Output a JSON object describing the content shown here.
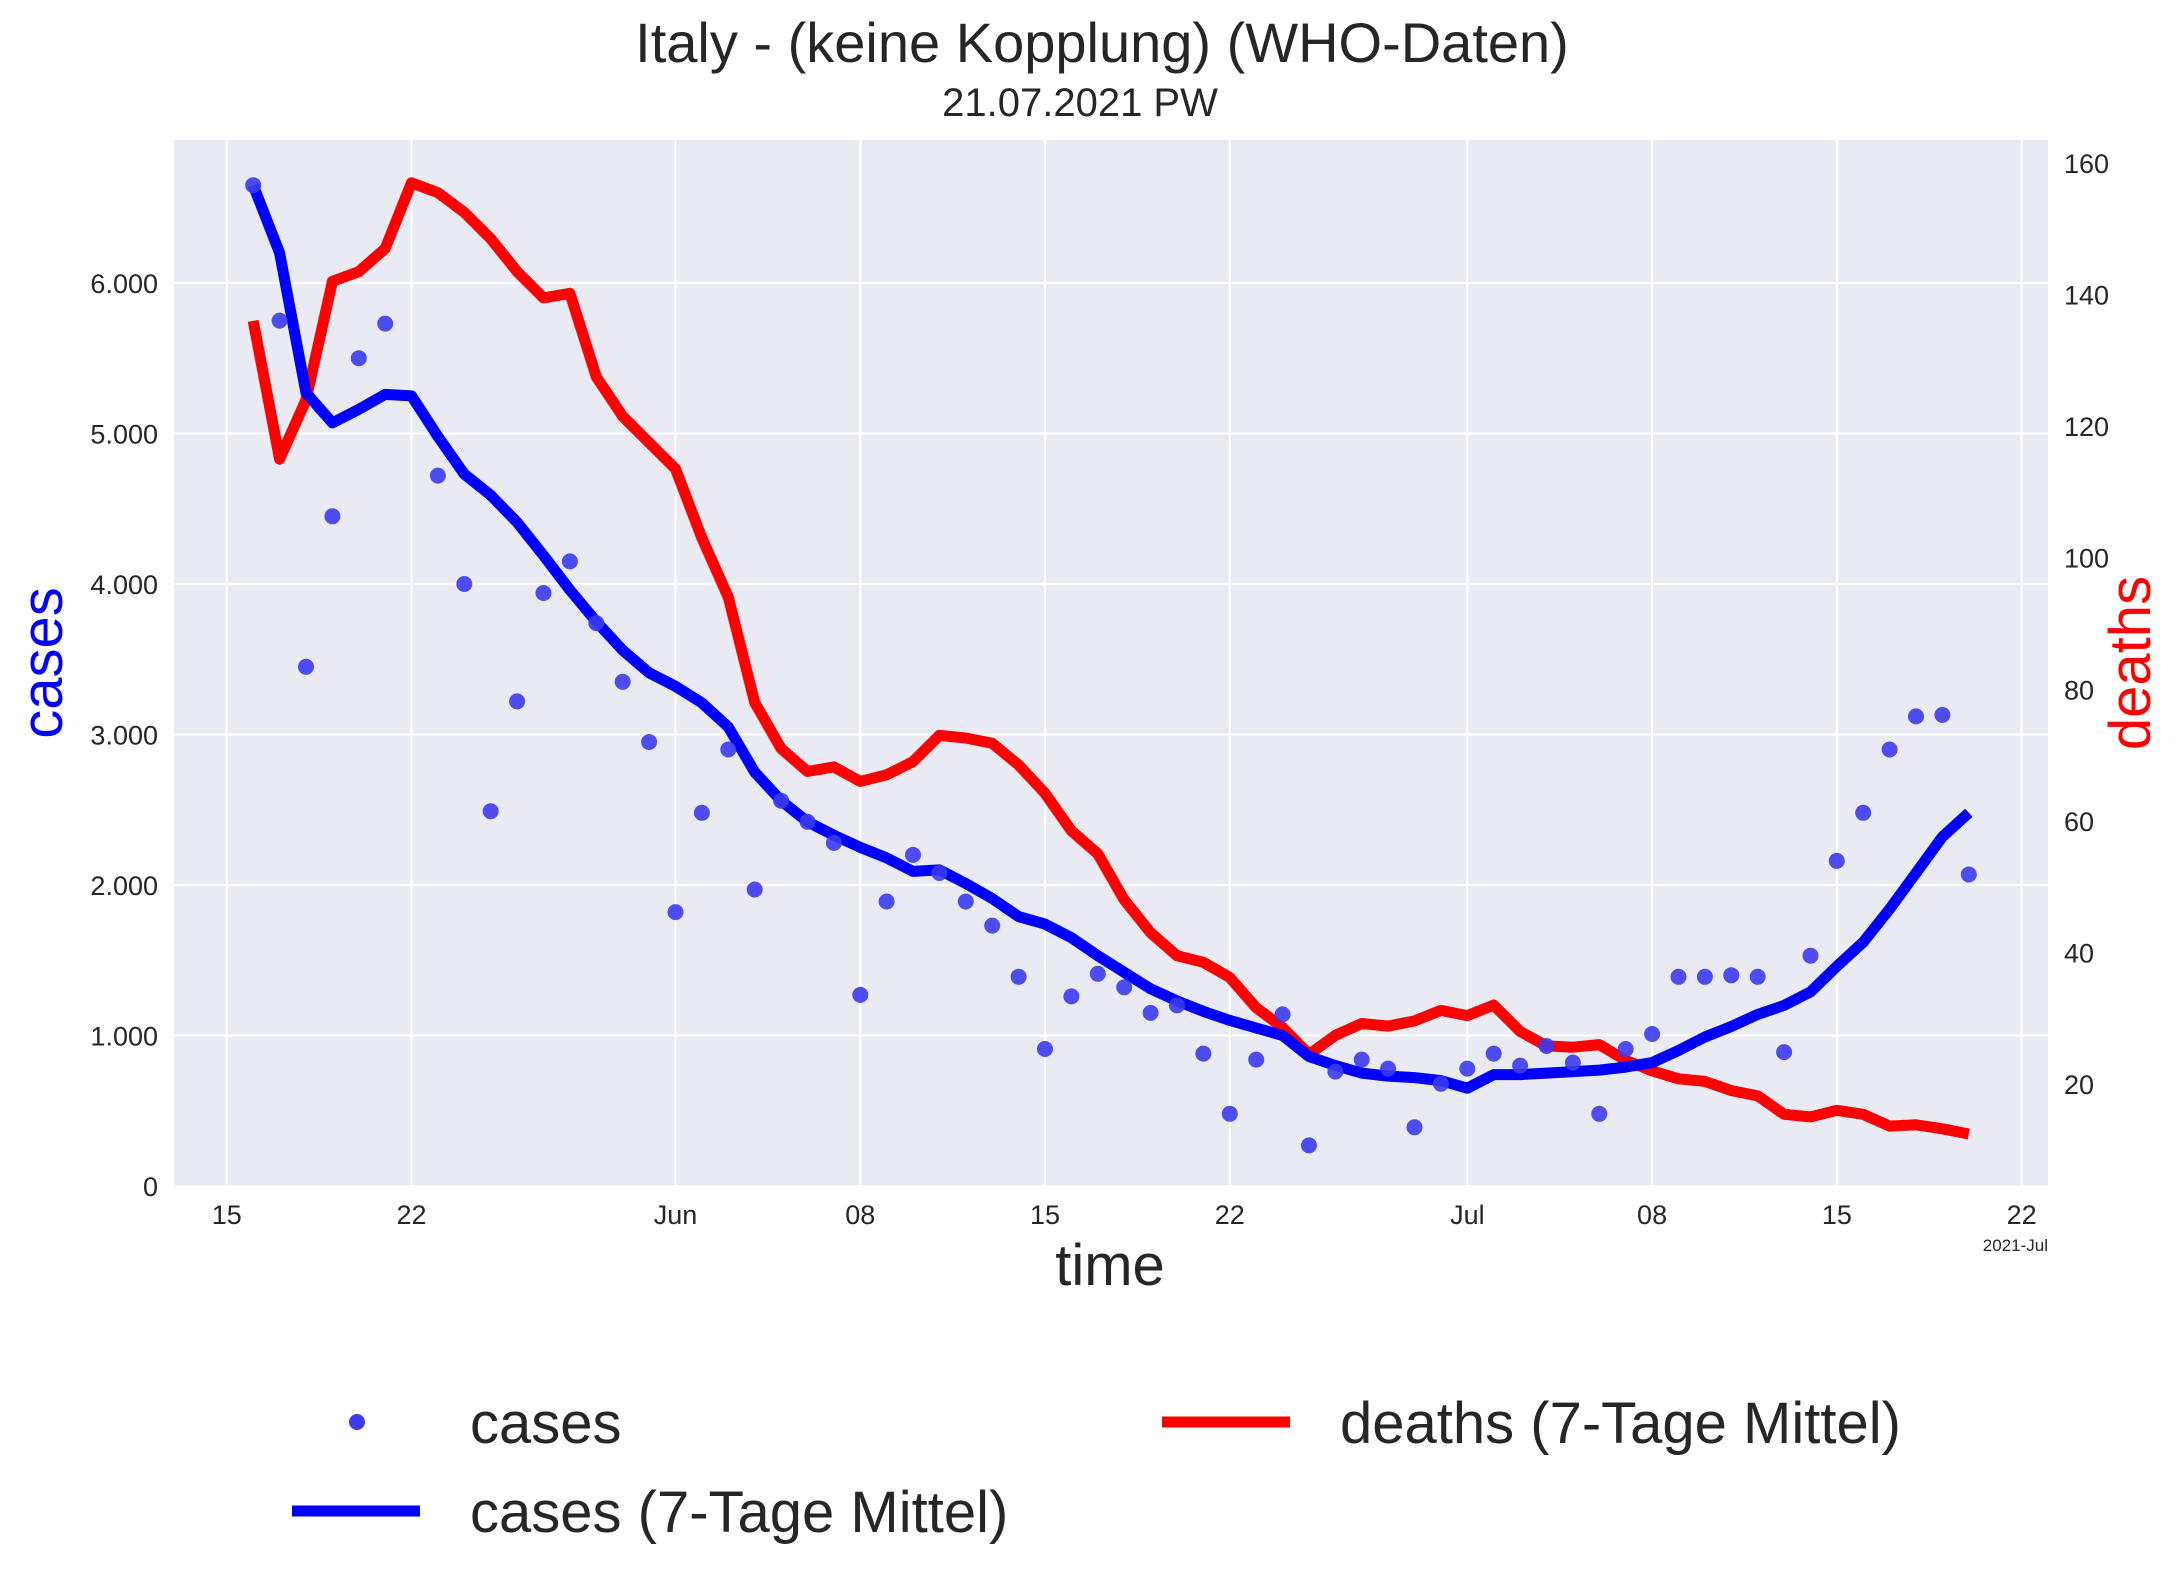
{
  "chart_data": {
    "type": "line",
    "title": "Italy - (keine Kopplung)  (WHO-Daten)",
    "subtitle": "21.07.2021 PW",
    "xlabel": "time",
    "ylabel_left": "cases",
    "ylabel_right": "deaths",
    "x_tick_labels": [
      {
        "date": "2021-05-15",
        "label": "15"
      },
      {
        "date": "2021-05-22",
        "label": "22"
      },
      {
        "date": "2021-06-01",
        "label": "Jun"
      },
      {
        "date": "2021-06-08",
        "label": "08"
      },
      {
        "date": "2021-06-15",
        "label": "15"
      },
      {
        "date": "2021-06-22",
        "label": "22"
      },
      {
        "date": "2021-07-01",
        "label": "Jul"
      },
      {
        "date": "2021-07-08",
        "label": "08"
      },
      {
        "date": "2021-07-15",
        "label": "15"
      },
      {
        "date": "2021-07-22",
        "label": "22"
      }
    ],
    "x_offset_label": "2021-Jul",
    "xlim": [
      "2021-05-13",
      "2021-07-23"
    ],
    "ylim_left": [
      0,
      6950
    ],
    "yticks_left": [
      {
        "value": 0,
        "label": "0"
      },
      {
        "value": 1000,
        "label": "1.000"
      },
      {
        "value": 2000,
        "label": "2.000"
      },
      {
        "value": 3000,
        "label": "3.000"
      },
      {
        "value": 4000,
        "label": "4.000"
      },
      {
        "value": 5000,
        "label": "5.000"
      },
      {
        "value": 6000,
        "label": "6.000"
      }
    ],
    "ylim_right": [
      4.5,
      163.5
    ],
    "yticks_right": [
      {
        "value": 20,
        "label": "20"
      },
      {
        "value": 40,
        "label": "40"
      },
      {
        "value": 60,
        "label": "60"
      },
      {
        "value": 80,
        "label": "80"
      },
      {
        "value": 100,
        "label": "100"
      },
      {
        "value": 120,
        "label": "120"
      },
      {
        "value": 140,
        "label": "140"
      },
      {
        "value": 160,
        "label": "160"
      }
    ],
    "grid": true,
    "legend_position": "bottom",
    "colors": {
      "cases_points": "#3b3bf0",
      "cases_line": "#0000ff",
      "deaths_line": "#ff0000",
      "background": "#eaeaf2",
      "grid": "#ffffff",
      "text": "#262626"
    },
    "dates": [
      "2021-05-16",
      "2021-05-17",
      "2021-05-18",
      "2021-05-19",
      "2021-05-20",
      "2021-05-21",
      "2021-05-22",
      "2021-05-23",
      "2021-05-24",
      "2021-05-25",
      "2021-05-26",
      "2021-05-27",
      "2021-05-28",
      "2021-05-29",
      "2021-05-30",
      "2021-05-31",
      "2021-06-01",
      "2021-06-02",
      "2021-06-03",
      "2021-06-04",
      "2021-06-05",
      "2021-06-06",
      "2021-06-07",
      "2021-06-08",
      "2021-06-09",
      "2021-06-10",
      "2021-06-11",
      "2021-06-12",
      "2021-06-13",
      "2021-06-14",
      "2021-06-15",
      "2021-06-16",
      "2021-06-17",
      "2021-06-18",
      "2021-06-19",
      "2021-06-20",
      "2021-06-21",
      "2021-06-22",
      "2021-06-23",
      "2021-06-24",
      "2021-06-25",
      "2021-06-26",
      "2021-06-27",
      "2021-06-28",
      "2021-06-29",
      "2021-06-30",
      "2021-07-01",
      "2021-07-02",
      "2021-07-03",
      "2021-07-04",
      "2021-07-05",
      "2021-07-06",
      "2021-07-07",
      "2021-07-08",
      "2021-07-09",
      "2021-07-10",
      "2021-07-11",
      "2021-07-12",
      "2021-07-13",
      "2021-07-14",
      "2021-07-15",
      "2021-07-16",
      "2021-07-17",
      "2021-07-18",
      "2021-07-19",
      "2021-07-20"
    ],
    "series": [
      {
        "name": "cases",
        "kind": "scatter",
        "axis": "left",
        "values": [
          6650,
          5750,
          3450,
          4450,
          5500,
          5730,
          null,
          4720,
          4000,
          2490,
          3220,
          3940,
          4150,
          3740,
          3350,
          2950,
          1820,
          2480,
          2900,
          1970,
          2560,
          2420,
          2280,
          1270,
          1890,
          2200,
          2080,
          1890,
          1730,
          1390,
          910,
          1260,
          1410,
          1320,
          1150,
          1200,
          880,
          480,
          840,
          1140,
          270,
          760,
          840,
          780,
          390,
          680,
          780,
          880,
          800,
          930,
          820,
          480,
          910,
          1010,
          1390,
          1390,
          1400,
          1390,
          890,
          1530,
          2160,
          2480,
          2900,
          3120,
          3130,
          2070
        ]
      },
      {
        "name": "cases (7-Tage Mittel)",
        "kind": "line",
        "axis": "left",
        "values": [
          6650,
          6200,
          5270,
          5070,
          5160,
          5260,
          5250,
          4980,
          4730,
          4590,
          4410,
          4190,
          3960,
          3750,
          3560,
          3410,
          3320,
          3210,
          3050,
          2750,
          2560,
          2420,
          2330,
          2250,
          2180,
          2090,
          2100,
          2010,
          1910,
          1790,
          1740,
          1650,
          1530,
          1420,
          1310,
          1230,
          1160,
          1100,
          1050,
          1000,
          860,
          800,
          750,
          730,
          720,
          700,
          650,
          740,
          740,
          750,
          760,
          770,
          790,
          820,
          900,
          990,
          1060,
          1140,
          1200,
          1290,
          1460,
          1620,
          1840,
          2080,
          2320,
          2480
        ]
      },
      {
        "name": "deaths (7-Tage Mittel)",
        "kind": "line",
        "axis": "right",
        "values": [
          136,
          115,
          124,
          142,
          143.5,
          147,
          157,
          155.5,
          152.5,
          148.5,
          143.5,
          139.5,
          140.2,
          127.5,
          121.5,
          117.5,
          113.5,
          103,
          94,
          78,
          71,
          67.5,
          68.2,
          66,
          67,
          69,
          73,
          72.6,
          71.8,
          68.5,
          64.2,
          58.5,
          55,
          48,
          43,
          39.5,
          38.5,
          36.2,
          31.6,
          28.6,
          24.5,
          27.4,
          29.2,
          28.8,
          29.6,
          31.2,
          30.4,
          32,
          28,
          25.8,
          25.6,
          26,
          23.6,
          22,
          20.8,
          20.4,
          19,
          18.2,
          15.4,
          15,
          16,
          15.4,
          13.6,
          13.8,
          13.2,
          12.4
        ]
      }
    ]
  }
}
